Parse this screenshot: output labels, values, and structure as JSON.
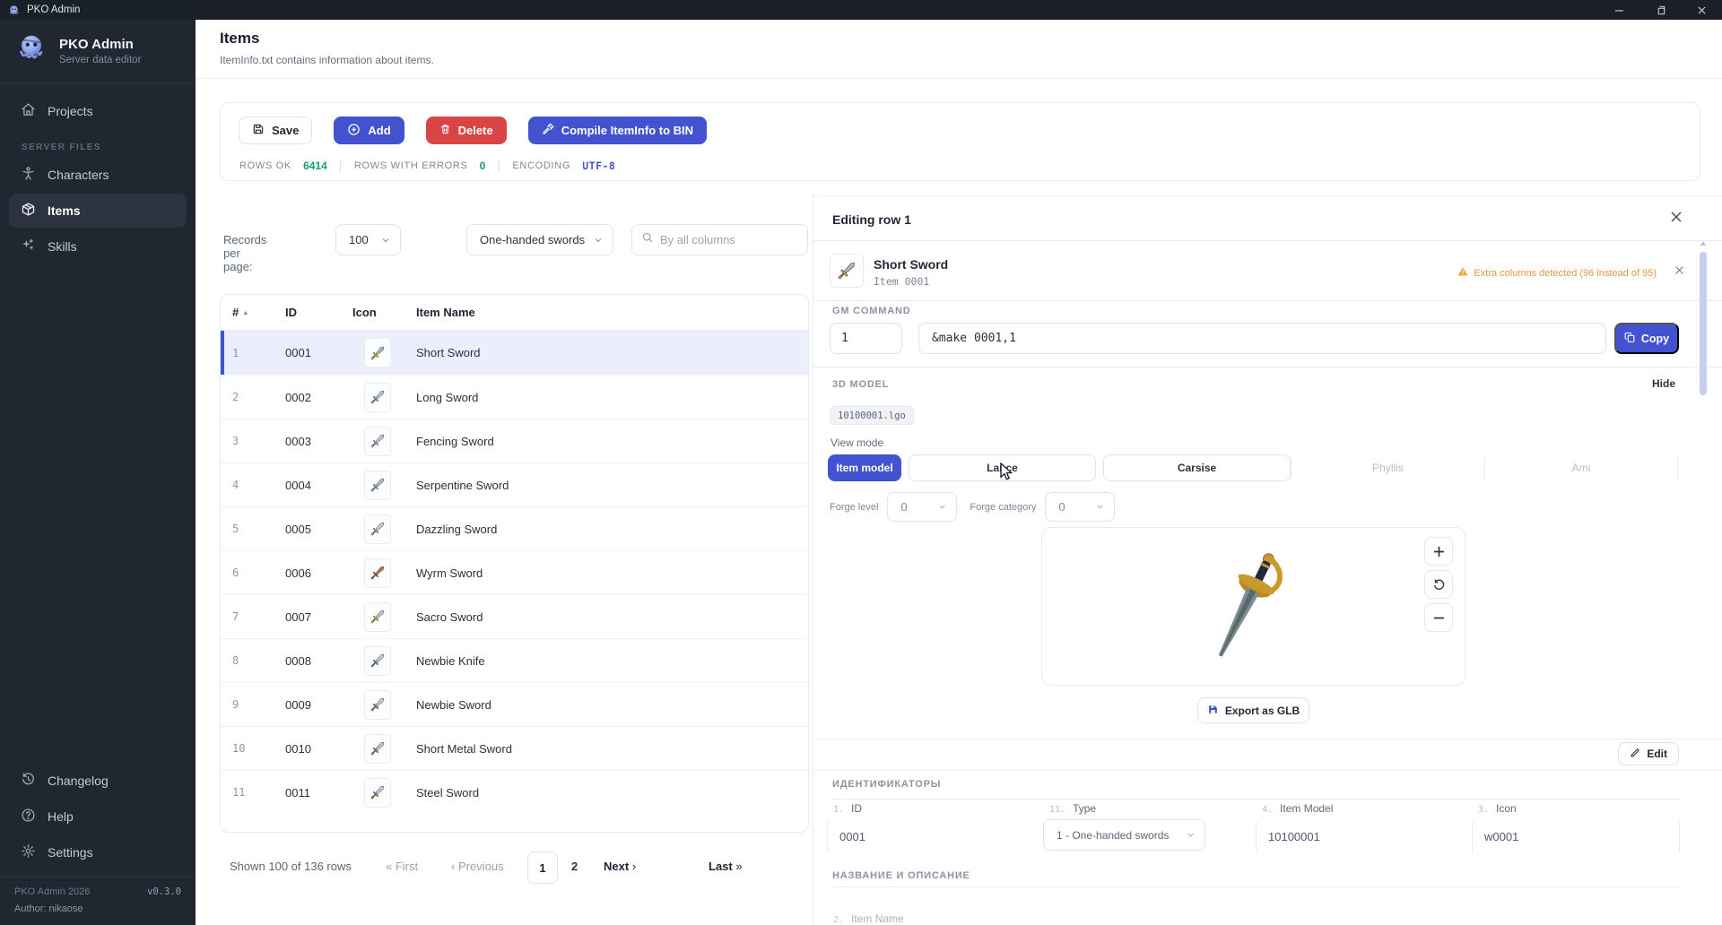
{
  "window": {
    "title": "PKO Admin"
  },
  "sidebar": {
    "app_name": "PKO Admin",
    "app_subtitle": "Server data editor",
    "nav_top": [
      {
        "label": "Projects",
        "icon": "home-icon",
        "active": false
      }
    ],
    "section_label": "SERVER FILES",
    "nav_files": [
      {
        "label": "Characters",
        "icon": "person-icon",
        "active": false
      },
      {
        "label": "Items",
        "icon": "cube-icon",
        "active": true
      },
      {
        "label": "Skills",
        "icon": "sparkles-icon",
        "active": false
      }
    ],
    "nav_bottom": [
      {
        "label": "Changelog",
        "icon": "history-icon",
        "active": false
      },
      {
        "label": "Help",
        "icon": "help-icon",
        "active": false
      },
      {
        "label": "Settings",
        "icon": "gear-icon",
        "active": false
      }
    ],
    "footer": {
      "line1": "PKO Admin 2026",
      "version": "v0.3.0",
      "line2": "Author: nikaose"
    }
  },
  "header": {
    "title": "Items",
    "subtitle": "ItemInfo.txt contains information about items."
  },
  "toolbar": {
    "save_label": "Save",
    "add_label": "Add",
    "delete_label": "Delete",
    "compile_label": "Compile ItemInfo to BIN",
    "stats": {
      "rows_ok_label": "ROWS OK",
      "rows_ok": "6414",
      "rows_errors_label": "ROWS WITH ERRORS",
      "rows_errors": "0",
      "encoding_label": "ENCODING",
      "encoding": "UTF-8"
    }
  },
  "list_controls": {
    "records_label": "Records per page:",
    "records_value": "100",
    "filter_value": "One-handed swords",
    "search_placeholder": "By all columns"
  },
  "table": {
    "headers": {
      "num": "#",
      "id": "ID",
      "icon": "Icon",
      "name": "Item Name"
    },
    "rows": [
      {
        "num": "1",
        "id": "0001",
        "name": "Short Sword",
        "selected": true,
        "blade": "#aeb7bf",
        "hilt": "#cfa238"
      },
      {
        "num": "2",
        "id": "0002",
        "name": "Long Sword",
        "selected": false,
        "blade": "#c0c7cd",
        "hilt": "#8e979f"
      },
      {
        "num": "3",
        "id": "0003",
        "name": "Fencing Sword",
        "selected": false,
        "blade": "#c5cbd1",
        "hilt": "#9aa1a8"
      },
      {
        "num": "4",
        "id": "0004",
        "name": "Serpentine Sword",
        "selected": false,
        "blade": "#b4bdc4",
        "hilt": "#8f98a0"
      },
      {
        "num": "5",
        "id": "0005",
        "name": "Dazzling Sword",
        "selected": false,
        "blade": "#ccd2d7",
        "hilt": "#959ca4"
      },
      {
        "num": "6",
        "id": "0006",
        "name": "Wyrm Sword",
        "selected": false,
        "blade": "#c96b3a",
        "hilt": "#8a5a2b"
      },
      {
        "num": "7",
        "id": "0007",
        "name": "Sacro Sword",
        "selected": false,
        "blade": "#c3cad0",
        "hilt": "#cfa238"
      },
      {
        "num": "8",
        "id": "0008",
        "name": "Newbie Knife",
        "selected": false,
        "blade": "#c8cdd2",
        "hilt": "#6f7a85"
      },
      {
        "num": "9",
        "id": "0009",
        "name": "Newbie Sword",
        "selected": false,
        "blade": "#c8cdd2",
        "hilt": "#6f7a85"
      },
      {
        "num": "10",
        "id": "0010",
        "name": "Short Metal Sword",
        "selected": false,
        "blade": "#c0c7cd",
        "hilt": "#a9713c"
      },
      {
        "num": "11",
        "id": "0011",
        "name": "Steel Sword",
        "selected": false,
        "blade": "#c6ccd2",
        "hilt": "#a9713c"
      }
    ]
  },
  "pagination": {
    "shown": "Shown 100 of 136 rows",
    "first": "First",
    "previous": "Previous",
    "page1": "1",
    "page2": "2",
    "next": "Next",
    "last": "Last"
  },
  "editor": {
    "title": "Editing row 1",
    "item": {
      "name": "Short Sword",
      "subtitle": "Item 0001"
    },
    "warning": "Extra columns detected (96 instead of 95)",
    "gm": {
      "label": "GM COMMAND",
      "qty": "1",
      "command": "&make 0001,1",
      "copy_label": "Copy"
    },
    "model": {
      "label": "3D MODEL",
      "hide_label": "Hide",
      "file": "10100001.lgo",
      "view_mode_label": "View mode",
      "tabs": [
        {
          "label": "Item model",
          "state": "active"
        },
        {
          "label": "Lance",
          "state": "outline"
        },
        {
          "label": "Carsise",
          "state": "outline"
        },
        {
          "label": "Phyllis",
          "state": "ghost"
        },
        {
          "label": "Ami",
          "state": "ghost"
        }
      ],
      "forge_level_label": "Forge level",
      "forge_level": "0",
      "forge_category_label": "Forge category",
      "forge_category": "0",
      "export_label": "Export as GLB"
    },
    "edit_label": "Edit",
    "identifiers": {
      "section": "ИДЕНТИФИКАТОРЫ",
      "fields": [
        {
          "num": "1.",
          "label": "ID",
          "value": "0001",
          "kind": "text"
        },
        {
          "num": "11.",
          "label": "Type",
          "value": "1 - One-handed swords",
          "kind": "select"
        },
        {
          "num": "4.",
          "label": "Item Model",
          "value": "10100001",
          "kind": "text"
        },
        {
          "num": "3.",
          "label": "Icon",
          "value": "w0001",
          "kind": "text"
        }
      ]
    },
    "naming": {
      "section": "НАЗВАНИЕ И ОПИСАНИЕ",
      "partial_num": "2.",
      "partial_label": "Item Name"
    }
  },
  "colors": {
    "accent": "#4353d0",
    "danger": "#d94444",
    "success": "#1b9e63",
    "warning": "#e09a3c"
  }
}
